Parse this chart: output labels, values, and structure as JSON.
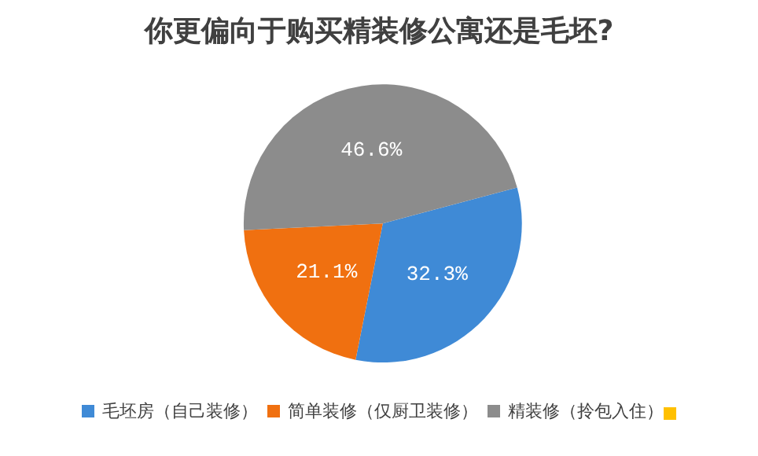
{
  "chart_data": {
    "type": "pie",
    "title": "你更偏向于购买精装修公寓还是毛坯?",
    "categories": [
      "毛坯房（自己装修）",
      "简单装修（仅厨卫装修）",
      "精装修（拎包入住）"
    ],
    "values": [
      32.3,
      21.1,
      46.6
    ],
    "value_labels": [
      "32.3%",
      "21.1%",
      "46.6%"
    ],
    "colors": [
      "#3f8ad6",
      "#f07010",
      "#8c8c8c"
    ],
    "legend": "bottom"
  }
}
